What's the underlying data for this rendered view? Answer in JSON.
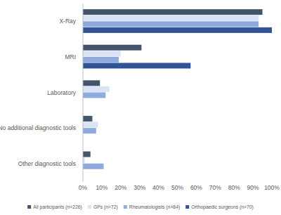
{
  "chart_data": {
    "type": "bar",
    "orientation": "horizontal",
    "categories": [
      "X-Ray",
      "MRI",
      "Laboratory",
      "No additional diagnostic tools",
      "Other diagnostic tools"
    ],
    "series": [
      {
        "name": "All participants (n=226)",
        "color": "#44546a",
        "values": [
          95,
          31,
          9,
          5,
          4
        ]
      },
      {
        "name": "GPs (n=72)",
        "color": "#dae3f3",
        "values": [
          93,
          20,
          14,
          8,
          1
        ]
      },
      {
        "name": "Rheumatologists (n=84)",
        "color": "#8faadc",
        "values": [
          93,
          19,
          12,
          7,
          11
        ]
      },
      {
        "name": "Orthopaedic surgeons (n=70)",
        "color": "#2f5597",
        "values": [
          100,
          57,
          0,
          0,
          0
        ]
      }
    ],
    "xlim": [
      0,
      100
    ],
    "xticks": [
      {
        "value": 0,
        "label": "0%"
      },
      {
        "value": 10,
        "label": "10%"
      },
      {
        "value": 20,
        "label": "20%"
      },
      {
        "value": 30,
        "label": "30%"
      },
      {
        "value": 40,
        "label": "40%"
      },
      {
        "value": 50,
        "label": "50%"
      },
      {
        "value": 60,
        "label": "60%"
      },
      {
        "value": 70,
        "label": "70%"
      },
      {
        "value": 80,
        "label": "80%"
      },
      {
        "value": 90,
        "label": "90%"
      },
      {
        "value": 100,
        "label": "100%"
      }
    ],
    "grid": false,
    "legend": "bottom"
  }
}
